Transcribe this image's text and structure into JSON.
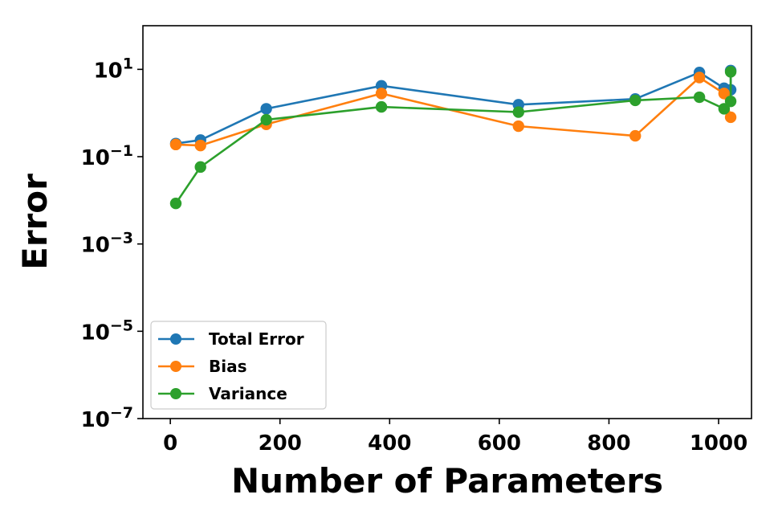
{
  "chart_data": {
    "type": "line",
    "xlabel": "Number of Parameters",
    "ylabel": "Error",
    "yscale": "log",
    "xlim": [
      -50,
      1060
    ],
    "ylim": [
      1e-07,
      100
    ],
    "xticks": [
      0,
      200,
      400,
      600,
      800,
      1000
    ],
    "xtick_labels": [
      "0",
      "200",
      "400",
      "600",
      "800",
      "1000"
    ],
    "yticks": [
      1e-07,
      1e-05,
      0.001,
      0.1,
      10
    ],
    "ytick_labels": [
      {
        "base": "10",
        "exp": "−7"
      },
      {
        "base": "10",
        "exp": "−5"
      },
      {
        "base": "10",
        "exp": "−3"
      },
      {
        "base": "10",
        "exp": "−1"
      },
      {
        "base": "10",
        "exp": "1"
      }
    ],
    "legend_position": "lower-left",
    "series": [
      {
        "name": "Total Error",
        "color": "#1f77b4",
        "points": [
          [
            10,
            0.2
          ],
          [
            55,
            0.24
          ],
          [
            175,
            1.25
          ],
          [
            385,
            4.2
          ],
          [
            635,
            1.55
          ],
          [
            848,
            2.1
          ],
          [
            965,
            8.5
          ],
          [
            1010,
            3.7
          ],
          [
            1022,
            3.4
          ],
          [
            1022,
            9.4
          ]
        ]
      },
      {
        "name": "Bias",
        "color": "#ff7f0e",
        "points": [
          [
            10,
            0.19
          ],
          [
            55,
            0.18
          ],
          [
            175,
            0.55
          ],
          [
            385,
            2.8
          ],
          [
            635,
            0.5
          ],
          [
            848,
            0.3
          ],
          [
            965,
            6.5
          ],
          [
            1010,
            2.8
          ],
          [
            1022,
            0.8
          ]
        ]
      },
      {
        "name": "Variance",
        "color": "#2ca02c",
        "points": [
          [
            10,
            0.0085
          ],
          [
            55,
            0.058
          ],
          [
            175,
            0.7
          ],
          [
            385,
            1.38
          ],
          [
            635,
            1.05
          ],
          [
            848,
            1.95
          ],
          [
            965,
            2.3
          ],
          [
            1010,
            1.25
          ],
          [
            1022,
            1.85
          ],
          [
            1022,
            8.8
          ]
        ]
      }
    ]
  }
}
